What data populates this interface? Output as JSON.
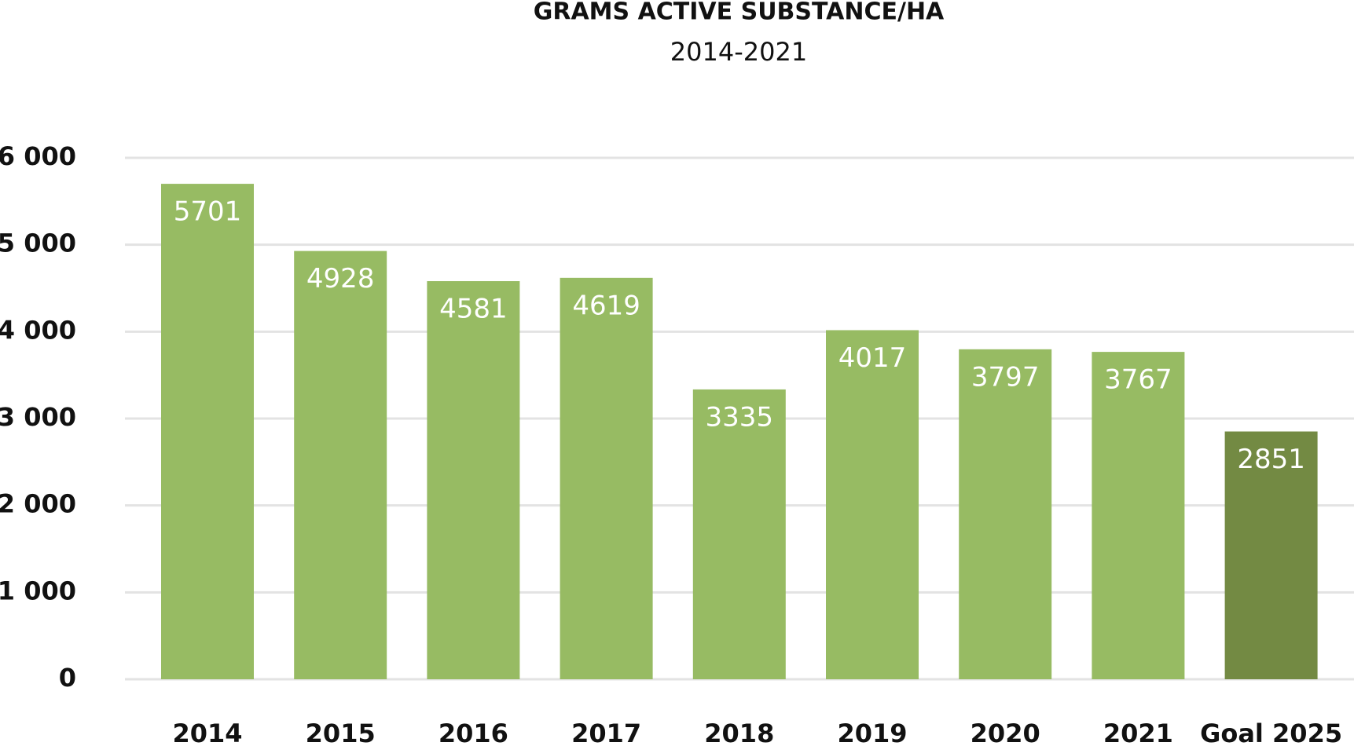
{
  "chart_data": {
    "type": "bar",
    "title": "GRAMS ACTIVE SUBSTANCE/HA",
    "subtitle": "2014-2021",
    "categories": [
      "2014",
      "2015",
      "2016",
      "2017",
      "2018",
      "2019",
      "2020",
      "2021",
      "Goal 2025"
    ],
    "values": [
      5701,
      4928,
      4581,
      4619,
      3335,
      4017,
      3797,
      3767,
      2851
    ],
    "colors": [
      "#97bb63",
      "#97bb63",
      "#97bb63",
      "#97bb63",
      "#97bb63",
      "#97bb63",
      "#97bb63",
      "#97bb63",
      "#738a43"
    ],
    "ylim": [
      0,
      6000
    ],
    "yticks": [
      0,
      {
        "value": 1000,
        "label": "1 000"
      },
      {
        "value": 2000,
        "label": "2 000"
      },
      {
        "value": 3000,
        "label": "3 000"
      },
      {
        "value": 4000,
        "label": "4 000"
      },
      {
        "value": 5000,
        "label": "5 000"
      },
      {
        "value": 6000,
        "label": "6 000"
      }
    ],
    "grid": true
  }
}
